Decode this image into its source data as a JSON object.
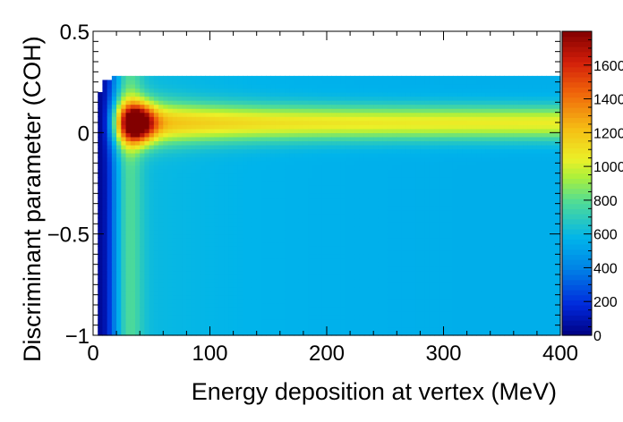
{
  "chart_data": {
    "type": "heatmap",
    "title": "",
    "xlabel": "Energy deposition at vertex (MeV)",
    "ylabel": "Discriminant parameter (COH)",
    "xlim": [
      0,
      400
    ],
    "ylim": [
      -1,
      0.5
    ],
    "x_ticks": [
      "0",
      "100",
      "200",
      "300",
      "400"
    ],
    "y_ticks": [
      "0.5",
      "0",
      "−0.5",
      "−1"
    ],
    "colorbar": {
      "range": [
        0,
        1800
      ],
      "ticks": [
        "0",
        "200",
        "400",
        "600",
        "800",
        "1000",
        "1200",
        "1400",
        "1600"
      ],
      "palette": "rainbow (dark blue to dark red)"
    },
    "grid": false,
    "features": {
      "empty_below_energy": 5,
      "populated_max_discriminant": 0.27,
      "peak": {
        "x": 38,
        "y": 0.05,
        "value": 1800
      },
      "ridge_along_discriminant": 0.05,
      "ridge_value_at_400": 1050,
      "high_energy_bulk_value": 550,
      "low_energy_edge_value": 50
    }
  }
}
